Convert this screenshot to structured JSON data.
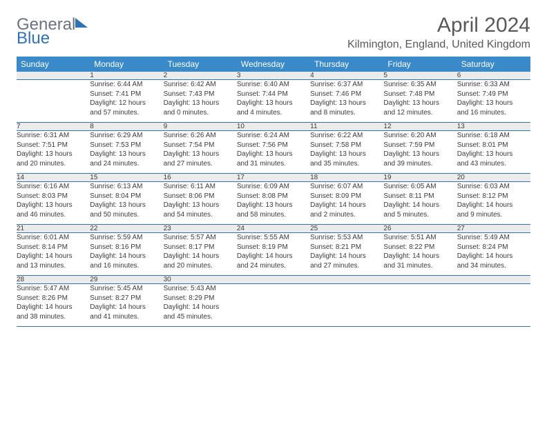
{
  "brand": {
    "word1": "General",
    "word2": "Blue"
  },
  "title": "April 2024",
  "location": "Kilmington, England, United Kingdom",
  "day_headers": [
    "Sunday",
    "Monday",
    "Tuesday",
    "Wednesday",
    "Thursday",
    "Friday",
    "Saturday"
  ],
  "colors": {
    "header_bg": "#3a8ac9",
    "header_text": "#ffffff",
    "daynum_bg": "#ececec",
    "rule": "#2f72b5",
    "title_text": "#595959"
  },
  "weeks": [
    {
      "nums": [
        "",
        "1",
        "2",
        "3",
        "4",
        "5",
        "6"
      ],
      "cells": [
        {
          "empty": true
        },
        {
          "sunrise": "Sunrise: 6:44 AM",
          "sunset": "Sunset: 7:41 PM",
          "day1": "Daylight: 12 hours",
          "day2": "and 57 minutes."
        },
        {
          "sunrise": "Sunrise: 6:42 AM",
          "sunset": "Sunset: 7:43 PM",
          "day1": "Daylight: 13 hours",
          "day2": "and 0 minutes."
        },
        {
          "sunrise": "Sunrise: 6:40 AM",
          "sunset": "Sunset: 7:44 PM",
          "day1": "Daylight: 13 hours",
          "day2": "and 4 minutes."
        },
        {
          "sunrise": "Sunrise: 6:37 AM",
          "sunset": "Sunset: 7:46 PM",
          "day1": "Daylight: 13 hours",
          "day2": "and 8 minutes."
        },
        {
          "sunrise": "Sunrise: 6:35 AM",
          "sunset": "Sunset: 7:48 PM",
          "day1": "Daylight: 13 hours",
          "day2": "and 12 minutes."
        },
        {
          "sunrise": "Sunrise: 6:33 AM",
          "sunset": "Sunset: 7:49 PM",
          "day1": "Daylight: 13 hours",
          "day2": "and 16 minutes."
        }
      ]
    },
    {
      "nums": [
        "7",
        "8",
        "9",
        "10",
        "11",
        "12",
        "13"
      ],
      "cells": [
        {
          "sunrise": "Sunrise: 6:31 AM",
          "sunset": "Sunset: 7:51 PM",
          "day1": "Daylight: 13 hours",
          "day2": "and 20 minutes."
        },
        {
          "sunrise": "Sunrise: 6:29 AM",
          "sunset": "Sunset: 7:53 PM",
          "day1": "Daylight: 13 hours",
          "day2": "and 24 minutes."
        },
        {
          "sunrise": "Sunrise: 6:26 AM",
          "sunset": "Sunset: 7:54 PM",
          "day1": "Daylight: 13 hours",
          "day2": "and 27 minutes."
        },
        {
          "sunrise": "Sunrise: 6:24 AM",
          "sunset": "Sunset: 7:56 PM",
          "day1": "Daylight: 13 hours",
          "day2": "and 31 minutes."
        },
        {
          "sunrise": "Sunrise: 6:22 AM",
          "sunset": "Sunset: 7:58 PM",
          "day1": "Daylight: 13 hours",
          "day2": "and 35 minutes."
        },
        {
          "sunrise": "Sunrise: 6:20 AM",
          "sunset": "Sunset: 7:59 PM",
          "day1": "Daylight: 13 hours",
          "day2": "and 39 minutes."
        },
        {
          "sunrise": "Sunrise: 6:18 AM",
          "sunset": "Sunset: 8:01 PM",
          "day1": "Daylight: 13 hours",
          "day2": "and 43 minutes."
        }
      ]
    },
    {
      "nums": [
        "14",
        "15",
        "16",
        "17",
        "18",
        "19",
        "20"
      ],
      "cells": [
        {
          "sunrise": "Sunrise: 6:16 AM",
          "sunset": "Sunset: 8:03 PM",
          "day1": "Daylight: 13 hours",
          "day2": "and 46 minutes."
        },
        {
          "sunrise": "Sunrise: 6:13 AM",
          "sunset": "Sunset: 8:04 PM",
          "day1": "Daylight: 13 hours",
          "day2": "and 50 minutes."
        },
        {
          "sunrise": "Sunrise: 6:11 AM",
          "sunset": "Sunset: 8:06 PM",
          "day1": "Daylight: 13 hours",
          "day2": "and 54 minutes."
        },
        {
          "sunrise": "Sunrise: 6:09 AM",
          "sunset": "Sunset: 8:08 PM",
          "day1": "Daylight: 13 hours",
          "day2": "and 58 minutes."
        },
        {
          "sunrise": "Sunrise: 6:07 AM",
          "sunset": "Sunset: 8:09 PM",
          "day1": "Daylight: 14 hours",
          "day2": "and 2 minutes."
        },
        {
          "sunrise": "Sunrise: 6:05 AM",
          "sunset": "Sunset: 8:11 PM",
          "day1": "Daylight: 14 hours",
          "day2": "and 5 minutes."
        },
        {
          "sunrise": "Sunrise: 6:03 AM",
          "sunset": "Sunset: 8:12 PM",
          "day1": "Daylight: 14 hours",
          "day2": "and 9 minutes."
        }
      ]
    },
    {
      "nums": [
        "21",
        "22",
        "23",
        "24",
        "25",
        "26",
        "27"
      ],
      "cells": [
        {
          "sunrise": "Sunrise: 6:01 AM",
          "sunset": "Sunset: 8:14 PM",
          "day1": "Daylight: 14 hours",
          "day2": "and 13 minutes."
        },
        {
          "sunrise": "Sunrise: 5:59 AM",
          "sunset": "Sunset: 8:16 PM",
          "day1": "Daylight: 14 hours",
          "day2": "and 16 minutes."
        },
        {
          "sunrise": "Sunrise: 5:57 AM",
          "sunset": "Sunset: 8:17 PM",
          "day1": "Daylight: 14 hours",
          "day2": "and 20 minutes."
        },
        {
          "sunrise": "Sunrise: 5:55 AM",
          "sunset": "Sunset: 8:19 PM",
          "day1": "Daylight: 14 hours",
          "day2": "and 24 minutes."
        },
        {
          "sunrise": "Sunrise: 5:53 AM",
          "sunset": "Sunset: 8:21 PM",
          "day1": "Daylight: 14 hours",
          "day2": "and 27 minutes."
        },
        {
          "sunrise": "Sunrise: 5:51 AM",
          "sunset": "Sunset: 8:22 PM",
          "day1": "Daylight: 14 hours",
          "day2": "and 31 minutes."
        },
        {
          "sunrise": "Sunrise: 5:49 AM",
          "sunset": "Sunset: 8:24 PM",
          "day1": "Daylight: 14 hours",
          "day2": "and 34 minutes."
        }
      ]
    },
    {
      "nums": [
        "28",
        "29",
        "30",
        "",
        "",
        "",
        ""
      ],
      "cells": [
        {
          "sunrise": "Sunrise: 5:47 AM",
          "sunset": "Sunset: 8:26 PM",
          "day1": "Daylight: 14 hours",
          "day2": "and 38 minutes."
        },
        {
          "sunrise": "Sunrise: 5:45 AM",
          "sunset": "Sunset: 8:27 PM",
          "day1": "Daylight: 14 hours",
          "day2": "and 41 minutes."
        },
        {
          "sunrise": "Sunrise: 5:43 AM",
          "sunset": "Sunset: 8:29 PM",
          "day1": "Daylight: 14 hours",
          "day2": "and 45 minutes."
        },
        {
          "empty": true
        },
        {
          "empty": true
        },
        {
          "empty": true
        },
        {
          "empty": true
        }
      ]
    }
  ]
}
